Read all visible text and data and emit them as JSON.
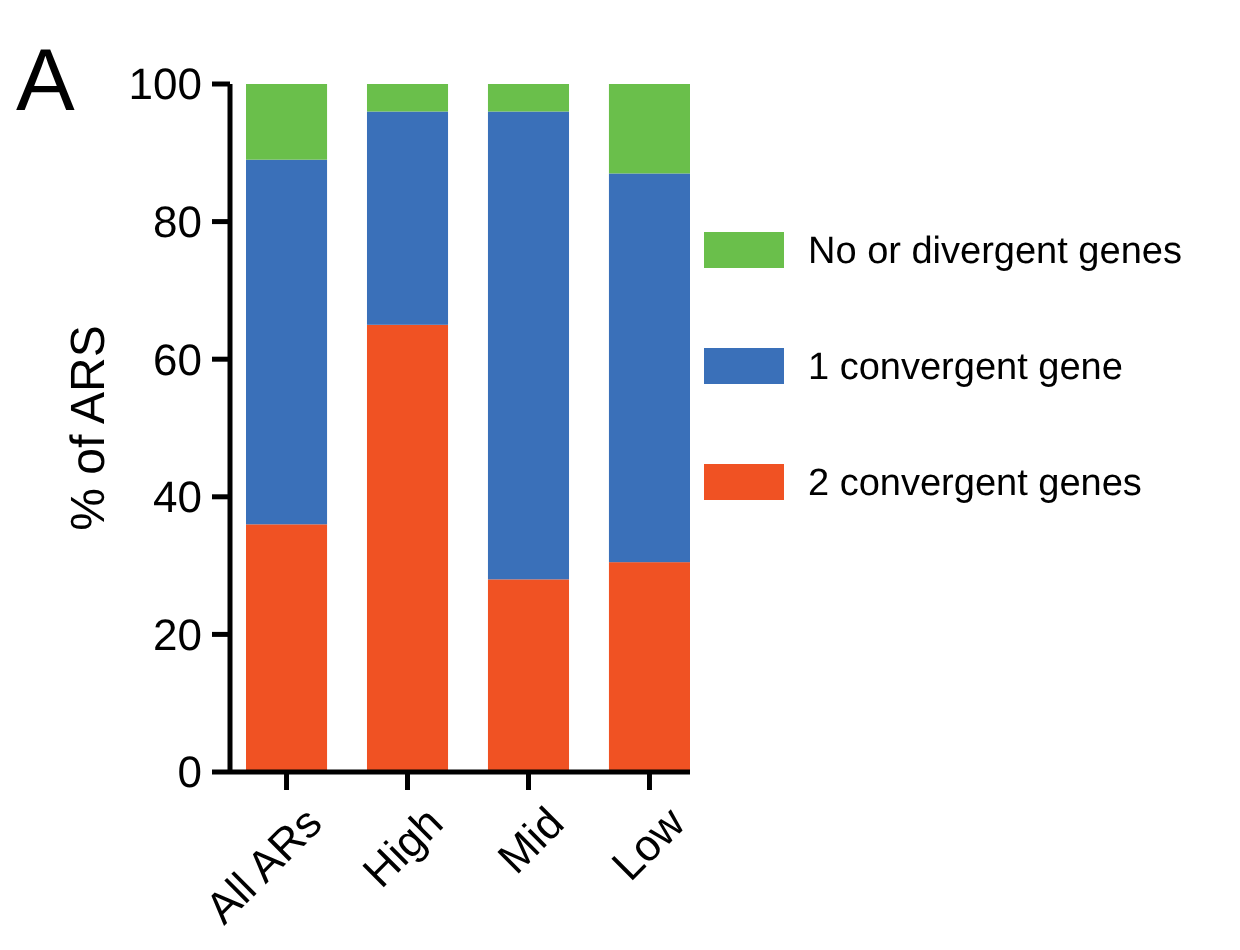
{
  "chart_data": {
    "type": "bar",
    "stacked": true,
    "ylabel": "% of ARS",
    "annotations": [
      "A"
    ],
    "categories": [
      "All ARs",
      "High",
      "Mid",
      "Low"
    ],
    "series": [
      {
        "name": "2 convergent genes",
        "color": "#f05223",
        "values": [
          36,
          65,
          28,
          30.5
        ]
      },
      {
        "name": "1 convergent gene",
        "color": "#3a70b9",
        "values": [
          53,
          31,
          68,
          56.5
        ]
      },
      {
        "name": "No or divergent genes",
        "color": "#6abf4b",
        "values": [
          11,
          4,
          4,
          13
        ]
      }
    ],
    "ylim": [
      0,
      100
    ],
    "yticks": [
      0,
      20,
      40,
      60,
      80,
      100
    ],
    "grid": false,
    "legend": "right"
  }
}
